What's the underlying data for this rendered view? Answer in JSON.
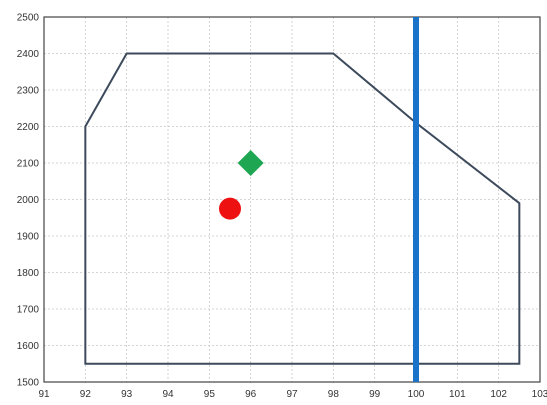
{
  "chart_data": {
    "type": "scatter",
    "title": "",
    "xlabel": "",
    "ylabel": "",
    "xlim": [
      91,
      103
    ],
    "ylim": [
      1500,
      2500
    ],
    "grid": true,
    "x_ticks": [
      91,
      92,
      93,
      94,
      95,
      96,
      97,
      98,
      99,
      100,
      101,
      102,
      103
    ],
    "y_ticks": [
      1500,
      1600,
      1700,
      1800,
      1900,
      2000,
      2100,
      2200,
      2300,
      2400,
      2500
    ],
    "envelope_polygon": [
      [
        92,
        1550
      ],
      [
        92,
        2200
      ],
      [
        93,
        2400
      ],
      [
        98,
        2400
      ],
      [
        100,
        2210
      ],
      [
        102.5,
        1990
      ],
      [
        102.5,
        1550
      ]
    ],
    "vertical_line": {
      "x": 100,
      "color": "#1a73c8"
    },
    "points": [
      {
        "x": 95.5,
        "y": 1975,
        "marker": "circle",
        "color": "#ee1111"
      },
      {
        "x": 96.0,
        "y": 2100,
        "marker": "diamond",
        "color": "#1fa653"
      }
    ],
    "colors": {
      "envelope": "#3d4a5c",
      "grid": "#c8c8c8",
      "frame": "#444444"
    }
  }
}
